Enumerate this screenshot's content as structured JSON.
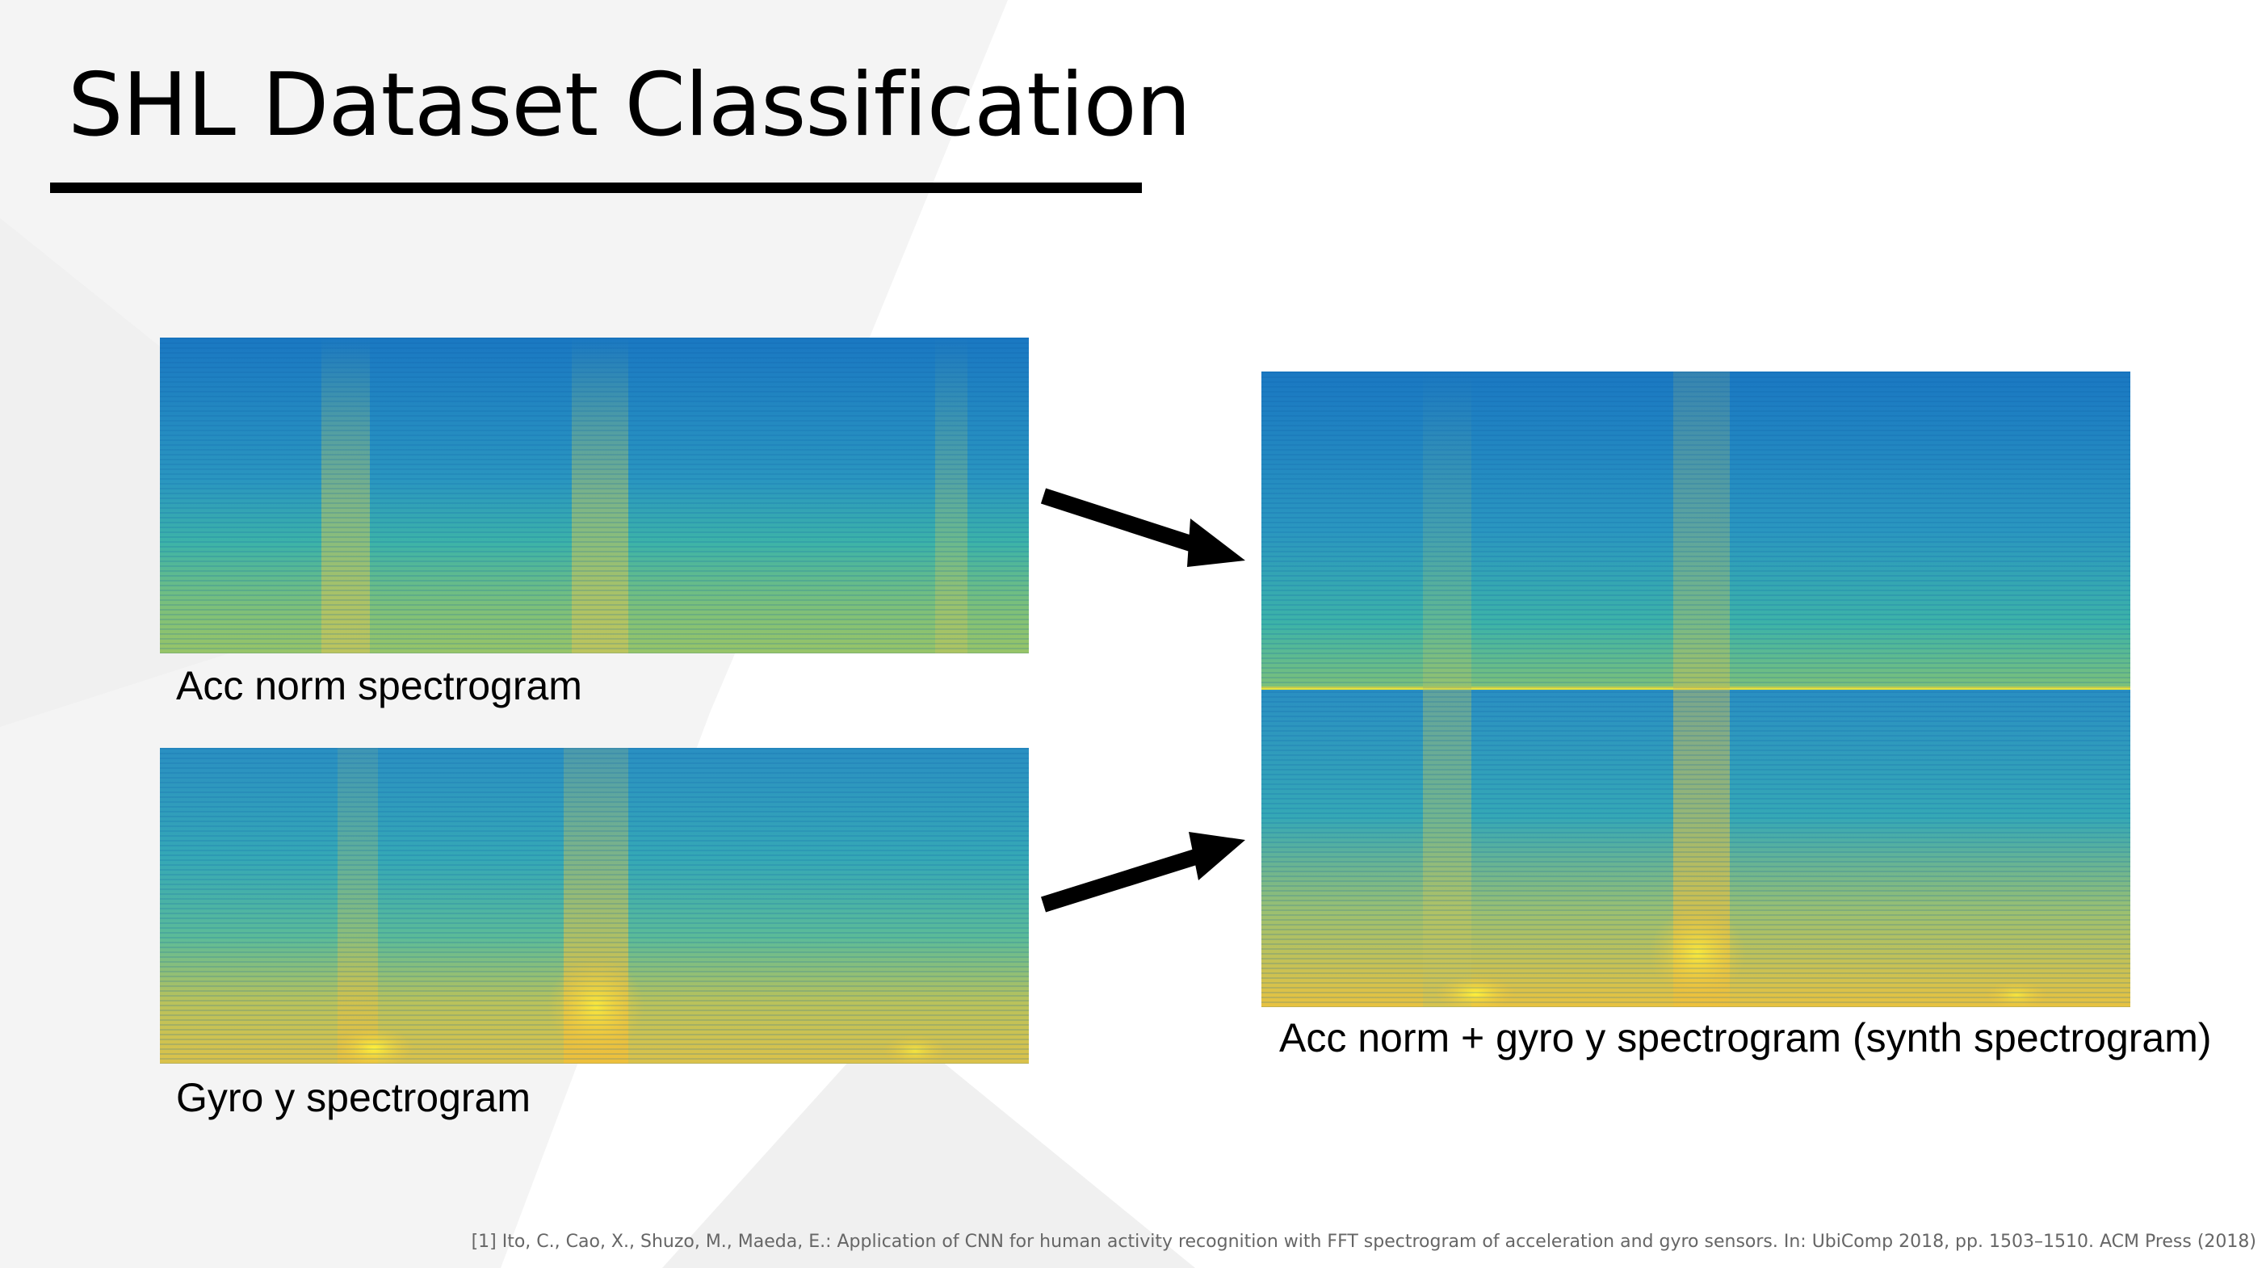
{
  "slide": {
    "title": "SHL Dataset Classification",
    "captions": {
      "acc": "Acc norm spectrogram",
      "gyro": "Gyro y spectrogram",
      "synth": "Acc norm + gyro y spectrogram (synth spectrogram)"
    },
    "citation": "[1] Ito, C., Cao, X., Shuzo, M., Maeda, E.: Application of CNN for human activity recognition with FFT spectrogram of acceleration and gyro sensors. In: UbiComp 2018, pp. 1503–1510. ACM Press (2018)"
  },
  "colors": {
    "low": "#1f78c8",
    "mid": "#3fb0b0",
    "high": "#f5c33a",
    "peak": "#fff23a",
    "background_shape": "#f4f4f4"
  }
}
